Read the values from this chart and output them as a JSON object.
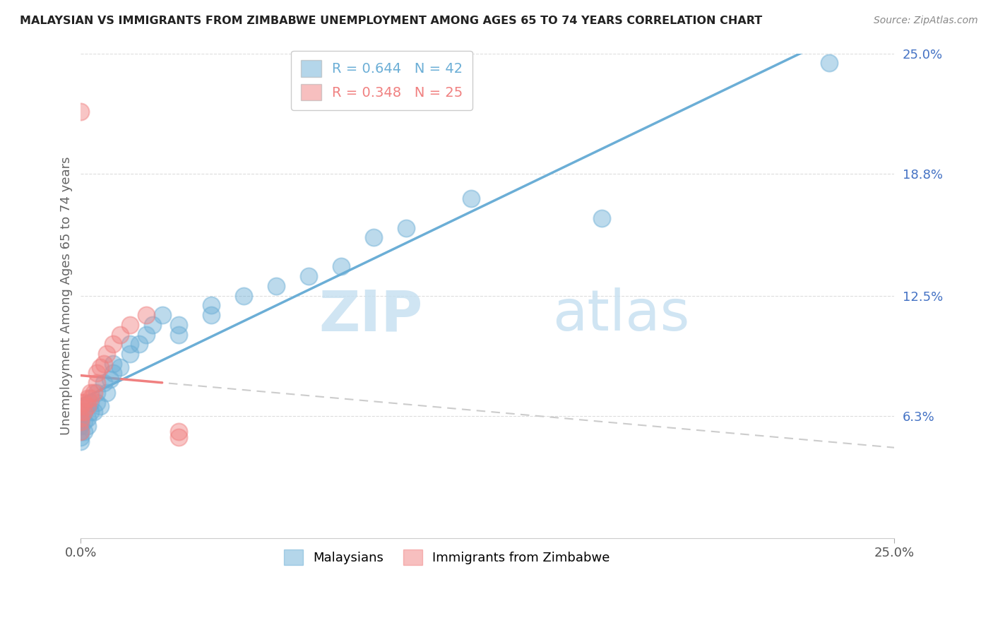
{
  "title": "MALAYSIAN VS IMMIGRANTS FROM ZIMBABWE UNEMPLOYMENT AMONG AGES 65 TO 74 YEARS CORRELATION CHART",
  "source": "Source: ZipAtlas.com",
  "ylabel_left": "Unemployment Among Ages 65 to 74 years",
  "xlim": [
    0.0,
    0.25
  ],
  "ylim": [
    0.0,
    0.25
  ],
  "malaysian_color": "#6baed6",
  "zimbabwe_color": "#f08080",
  "malaysian_R": 0.644,
  "malaysian_N": 42,
  "zimbabwe_R": 0.348,
  "zimbabwe_N": 25,
  "watermark_zip": "ZIP",
  "watermark_atlas": "atlas",
  "ytick_vals": [
    0.063,
    0.125,
    0.188,
    0.25
  ],
  "ytick_labels": [
    "6.3%",
    "12.5%",
    "18.8%",
    "25.0%"
  ],
  "malaysian_points": [
    [
      0.0,
      0.05
    ],
    [
      0.0,
      0.052
    ],
    [
      0.0,
      0.055
    ],
    [
      0.0,
      0.058
    ],
    [
      0.0,
      0.06
    ],
    [
      0.0,
      0.062
    ],
    [
      0.001,
      0.055
    ],
    [
      0.001,
      0.06
    ],
    [
      0.001,
      0.065
    ],
    [
      0.002,
      0.058
    ],
    [
      0.002,
      0.062
    ],
    [
      0.003,
      0.065
    ],
    [
      0.003,
      0.07
    ],
    [
      0.004,
      0.065
    ],
    [
      0.005,
      0.07
    ],
    [
      0.005,
      0.075
    ],
    [
      0.006,
      0.068
    ],
    [
      0.007,
      0.08
    ],
    [
      0.008,
      0.075
    ],
    [
      0.009,
      0.082
    ],
    [
      0.01,
      0.085
    ],
    [
      0.01,
      0.09
    ],
    [
      0.012,
      0.088
    ],
    [
      0.015,
      0.095
    ],
    [
      0.015,
      0.1
    ],
    [
      0.018,
      0.1
    ],
    [
      0.02,
      0.105
    ],
    [
      0.022,
      0.11
    ],
    [
      0.025,
      0.115
    ],
    [
      0.03,
      0.11
    ],
    [
      0.03,
      0.105
    ],
    [
      0.04,
      0.115
    ],
    [
      0.04,
      0.12
    ],
    [
      0.05,
      0.125
    ],
    [
      0.06,
      0.13
    ],
    [
      0.07,
      0.135
    ],
    [
      0.08,
      0.14
    ],
    [
      0.09,
      0.155
    ],
    [
      0.1,
      0.16
    ],
    [
      0.12,
      0.175
    ],
    [
      0.16,
      0.165
    ],
    [
      0.23,
      0.245
    ]
  ],
  "zimbabwe_points": [
    [
      0.0,
      0.22
    ],
    [
      0.0,
      0.055
    ],
    [
      0.0,
      0.06
    ],
    [
      0.0,
      0.062
    ],
    [
      0.0,
      0.065
    ],
    [
      0.0,
      0.068
    ],
    [
      0.0,
      0.07
    ],
    [
      0.001,
      0.065
    ],
    [
      0.001,
      0.07
    ],
    [
      0.002,
      0.068
    ],
    [
      0.002,
      0.072
    ],
    [
      0.003,
      0.072
    ],
    [
      0.003,
      0.075
    ],
    [
      0.004,
      0.075
    ],
    [
      0.005,
      0.08
    ],
    [
      0.005,
      0.085
    ],
    [
      0.006,
      0.088
    ],
    [
      0.007,
      0.09
    ],
    [
      0.008,
      0.095
    ],
    [
      0.01,
      0.1
    ],
    [
      0.012,
      0.105
    ],
    [
      0.015,
      0.11
    ],
    [
      0.02,
      0.115
    ],
    [
      0.03,
      0.055
    ],
    [
      0.03,
      0.052
    ]
  ]
}
